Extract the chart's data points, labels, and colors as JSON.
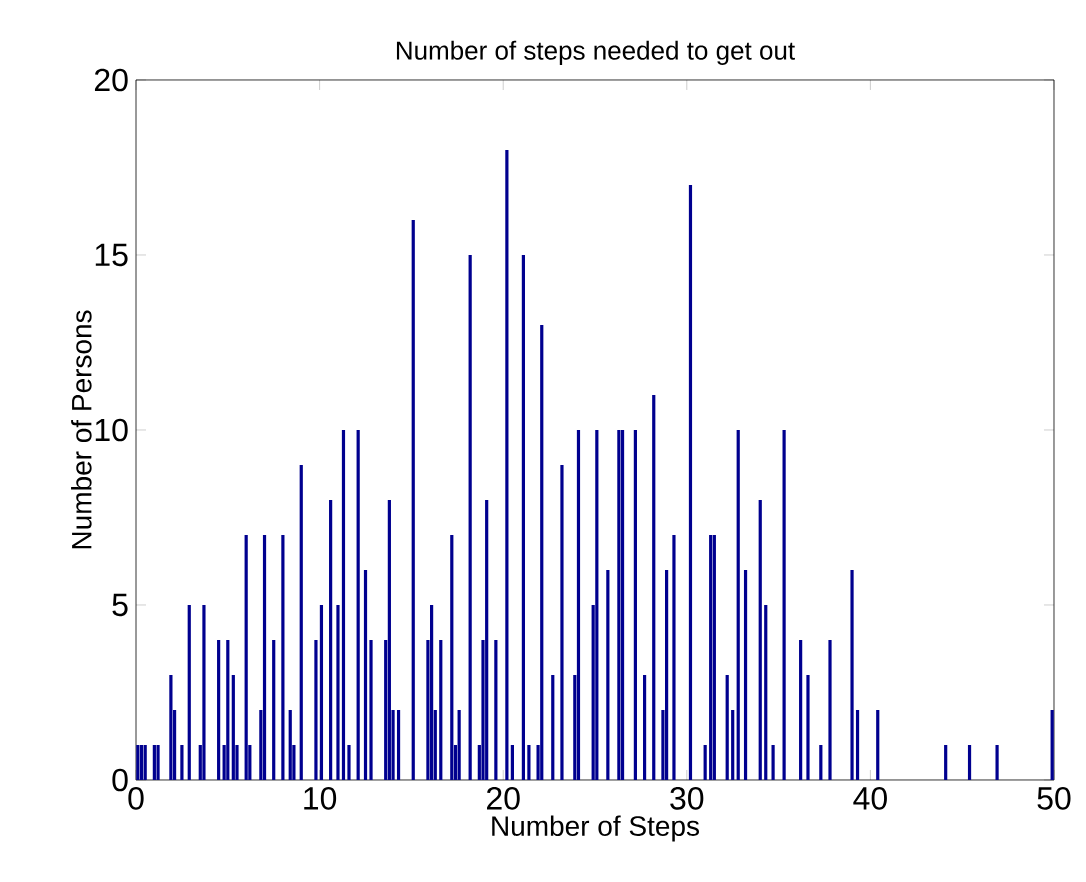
{
  "chart_data": {
    "type": "bar",
    "title": "Number of steps needed to get out",
    "xlabel": "Number of Steps",
    "ylabel": "Number of Persons",
    "x": [
      0.1,
      0.3,
      0.5,
      1.0,
      1.2,
      1.9,
      2.1,
      2.5,
      2.9,
      3.5,
      3.7,
      4.5,
      4.8,
      5.0,
      5.3,
      5.5,
      6.0,
      6.2,
      6.8,
      7.0,
      7.5,
      8.0,
      8.4,
      8.6,
      9.0,
      9.8,
      10.1,
      10.6,
      11.0,
      11.3,
      11.6,
      12.1,
      12.5,
      12.8,
      13.6,
      13.8,
      14.0,
      14.3,
      15.1,
      15.9,
      16.1,
      16.3,
      16.6,
      17.2,
      17.4,
      17.6,
      18.2,
      18.7,
      18.9,
      19.1,
      19.6,
      20.2,
      20.5,
      21.1,
      21.4,
      21.9,
      22.1,
      22.7,
      23.2,
      23.9,
      24.1,
      24.9,
      25.1,
      25.7,
      26.3,
      26.5,
      27.2,
      27.7,
      28.2,
      28.7,
      28.9,
      29.3,
      30.2,
      31.0,
      31.3,
      31.5,
      32.2,
      32.5,
      32.8,
      33.2,
      34.0,
      34.3,
      34.7,
      35.3,
      36.2,
      36.6,
      37.3,
      37.8,
      39.0,
      39.3,
      40.4,
      44.1,
      45.4,
      46.9,
      49.9
    ],
    "values": [
      1,
      1,
      1,
      1,
      1,
      3,
      2,
      1,
      5,
      1,
      5,
      4,
      1,
      4,
      3,
      1,
      7,
      1,
      2,
      7,
      4,
      7,
      2,
      1,
      9,
      4,
      5,
      8,
      5,
      10,
      1,
      10,
      6,
      4,
      4,
      8,
      2,
      2,
      16,
      4,
      5,
      2,
      4,
      7,
      1,
      2,
      15,
      1,
      4,
      8,
      4,
      18,
      1,
      15,
      1,
      1,
      13,
      3,
      9,
      3,
      10,
      5,
      10,
      6,
      10,
      10,
      10,
      3,
      11,
      2,
      6,
      7,
      17,
      1,
      7,
      7,
      3,
      2,
      10,
      6,
      8,
      5,
      1,
      10,
      4,
      3,
      1,
      4,
      6,
      2,
      2,
      1,
      1,
      1,
      2
    ],
    "color": "#00008f",
    "xlim": [
      0,
      50
    ],
    "xticks": [
      0,
      10,
      20,
      30,
      40,
      50
    ],
    "ylim": [
      0,
      20
    ],
    "yticks": [
      0,
      5,
      10,
      15,
      20
    ]
  }
}
